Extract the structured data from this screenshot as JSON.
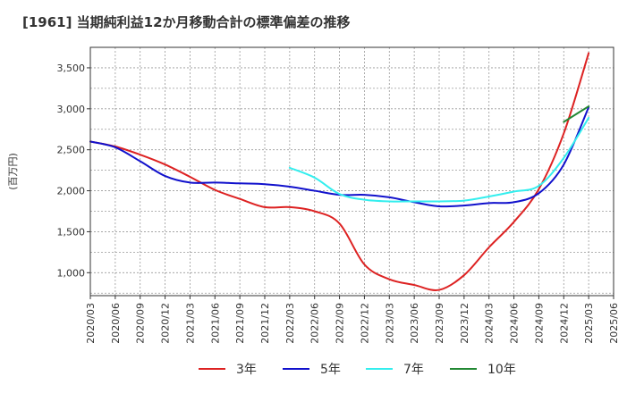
{
  "chart_data": {
    "type": "line",
    "title": "[1961]  当期純利益12か月移動合計の標準偏差の推移",
    "ylabel": "(百万円)",
    "xlabel": "",
    "ylim": [
      720,
      3750
    ],
    "yticks": [
      1000,
      1500,
      2000,
      2500,
      3000,
      3500
    ],
    "ytick_labels": [
      "1,000",
      "1,500",
      "2,000",
      "2,500",
      "3,000",
      "3,500"
    ],
    "xlim": [
      "2020/03",
      "2025/06"
    ],
    "xticks": [
      "2020/03",
      "2020/06",
      "2020/09",
      "2020/12",
      "2021/03",
      "2021/06",
      "2021/09",
      "2021/12",
      "2022/03",
      "2022/06",
      "2022/09",
      "2022/12",
      "2023/03",
      "2023/06",
      "2023/09",
      "2023/12",
      "2024/03",
      "2024/06",
      "2024/09",
      "2024/12",
      "2025/03",
      "2025/06"
    ],
    "grid": true,
    "legend_position": "bottom",
    "series": [
      {
        "name": "3年",
        "color": "#dd2222",
        "points": [
          [
            "2020/03",
            2600
          ],
          [
            "2020/06",
            2540
          ],
          [
            "2020/09",
            2440
          ],
          [
            "2020/12",
            2320
          ],
          [
            "2021/03",
            2170
          ],
          [
            "2021/06",
            2010
          ],
          [
            "2021/09",
            1900
          ],
          [
            "2021/12",
            1800
          ],
          [
            "2022/03",
            1800
          ],
          [
            "2022/06",
            1750
          ],
          [
            "2022/09",
            1600
          ],
          [
            "2022/12",
            1100
          ],
          [
            "2023/03",
            920
          ],
          [
            "2023/06",
            850
          ],
          [
            "2023/09",
            790
          ],
          [
            "2023/12",
            970
          ],
          [
            "2024/03",
            1310
          ],
          [
            "2024/06",
            1620
          ],
          [
            "2024/09",
            2020
          ],
          [
            "2024/12",
            2700
          ],
          [
            "2025/03",
            3680
          ]
        ]
      },
      {
        "name": "5年",
        "color": "#1111cc",
        "points": [
          [
            "2020/03",
            2600
          ],
          [
            "2020/06",
            2530
          ],
          [
            "2020/09",
            2360
          ],
          [
            "2020/12",
            2180
          ],
          [
            "2021/03",
            2100
          ],
          [
            "2021/06",
            2100
          ],
          [
            "2021/09",
            2090
          ],
          [
            "2021/12",
            2080
          ],
          [
            "2022/03",
            2050
          ],
          [
            "2022/06",
            2000
          ],
          [
            "2022/09",
            1950
          ],
          [
            "2022/12",
            1950
          ],
          [
            "2023/03",
            1920
          ],
          [
            "2023/06",
            1860
          ],
          [
            "2023/09",
            1810
          ],
          [
            "2023/12",
            1820
          ],
          [
            "2024/03",
            1850
          ],
          [
            "2024/06",
            1860
          ],
          [
            "2024/09",
            1970
          ],
          [
            "2024/12",
            2320
          ],
          [
            "2025/03",
            3020
          ]
        ]
      },
      {
        "name": "7年",
        "color": "#33eeee",
        "points": [
          [
            "2022/03",
            2280
          ],
          [
            "2022/06",
            2160
          ],
          [
            "2022/09",
            1960
          ],
          [
            "2022/12",
            1890
          ],
          [
            "2023/03",
            1870
          ],
          [
            "2023/06",
            1870
          ],
          [
            "2023/09",
            1870
          ],
          [
            "2023/12",
            1880
          ],
          [
            "2024/03",
            1930
          ],
          [
            "2024/06",
            1990
          ],
          [
            "2024/09",
            2060
          ],
          [
            "2024/12",
            2400
          ],
          [
            "2025/03",
            2890
          ]
        ]
      },
      {
        "name": "10年",
        "color": "#228833",
        "points": [
          [
            "2024/12",
            2840
          ],
          [
            "2025/03",
            3030
          ]
        ]
      }
    ]
  }
}
